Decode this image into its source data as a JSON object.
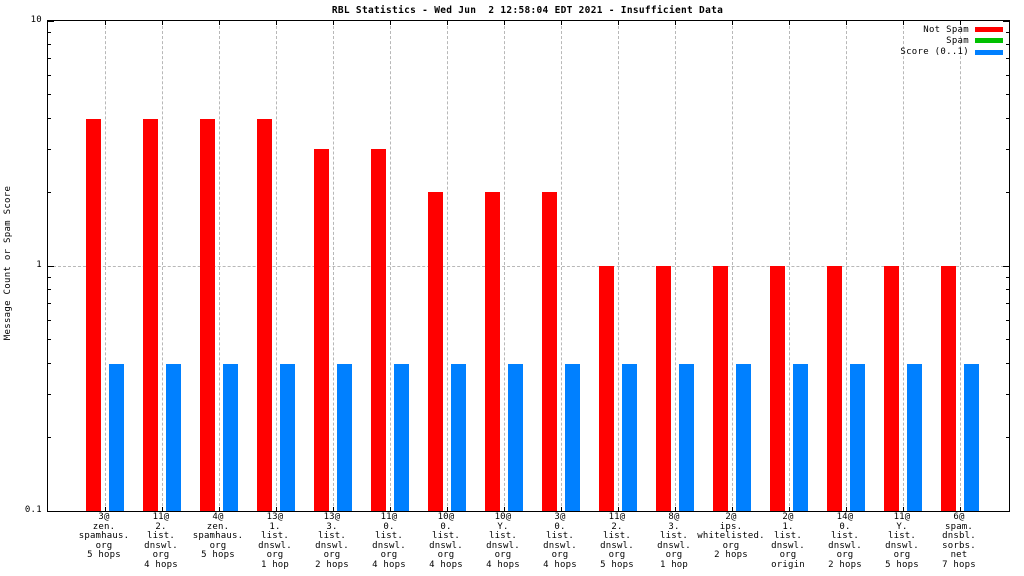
{
  "chart_data": {
    "type": "bar",
    "title": "RBL Statistics - Wed Jun  2 12:58:04 EDT 2021 - Insufficient Data",
    "xlabel": "",
    "ylabel": "Message Count or Spam Score",
    "yscale": "log",
    "ylim": [
      0.1,
      10
    ],
    "yticks_major": [
      {
        "value": 0.1,
        "label": "0.1"
      },
      {
        "value": 1,
        "label": "1"
      },
      {
        "value": 10,
        "label": "10"
      }
    ],
    "yticks_minor": [
      0.2,
      0.3,
      0.4,
      0.5,
      0.6,
      0.7,
      0.8,
      0.9,
      2,
      3,
      4,
      5,
      6,
      7,
      8,
      9
    ],
    "grid": {
      "horizontal_at": [
        1
      ],
      "vertical_at_group_centers": true,
      "style": "dashed",
      "color": "#b8b8b8"
    },
    "legend_position": "top-right",
    "categories": [
      [
        "3@",
        "zen.",
        "spamhaus.",
        "org",
        "5 hops"
      ],
      [
        "11@",
        "2.",
        "list.",
        "dnswl.",
        "org",
        "4 hops"
      ],
      [
        "4@",
        "zen.",
        "spamhaus.",
        "org",
        "5 hops"
      ],
      [
        "13@",
        "1.",
        "list.",
        "dnswl.",
        "org",
        "1 hop"
      ],
      [
        "13@",
        "3.",
        "list.",
        "dnswl.",
        "org",
        "2 hops"
      ],
      [
        "11@",
        "0.",
        "list.",
        "dnswl.",
        "org",
        "4 hops"
      ],
      [
        "10@",
        "0.",
        "list.",
        "dnswl.",
        "org",
        "4 hops"
      ],
      [
        "10@",
        "Y.",
        "list.",
        "dnswl.",
        "org",
        "4 hops"
      ],
      [
        "3@",
        "0.",
        "list.",
        "dnswl.",
        "org",
        "4 hops"
      ],
      [
        "11@",
        "2.",
        "list.",
        "dnswl.",
        "org",
        "5 hops"
      ],
      [
        "8@",
        "3.",
        "list.",
        "dnswl.",
        "org",
        "1 hop"
      ],
      [
        "2@",
        "ips.",
        "whitelisted.",
        "org",
        "2 hops"
      ],
      [
        "2@",
        "1.",
        "list.",
        "dnswl.",
        "org",
        "origin"
      ],
      [
        "14@",
        "0.",
        "list.",
        "dnswl.",
        "org",
        "2 hops"
      ],
      [
        "11@",
        "Y.",
        "list.",
        "dnswl.",
        "org",
        "5 hops"
      ],
      [
        "6@",
        "spam.",
        "dnsbl.",
        "sorbs.",
        "net",
        "7 hops"
      ]
    ],
    "series": [
      {
        "name": "Not Spam",
        "color": "#ff0000",
        "values": [
          4,
          4,
          4,
          4,
          3,
          3,
          2,
          2,
          2,
          1,
          1,
          1,
          1,
          1,
          1,
          1
        ]
      },
      {
        "name": "Spam",
        "color": "#00c000",
        "values": [
          0,
          0,
          0,
          0,
          0,
          0,
          0,
          0,
          0,
          0,
          0,
          0,
          0,
          0,
          0,
          0
        ]
      },
      {
        "name": "Score (0..1)",
        "color": "#0080ff",
        "values": [
          0.4,
          0.4,
          0.4,
          0.4,
          0.4,
          0.4,
          0.4,
          0.4,
          0.4,
          0.4,
          0.4,
          0.4,
          0.4,
          0.4,
          0.4,
          0.4
        ]
      }
    ]
  }
}
